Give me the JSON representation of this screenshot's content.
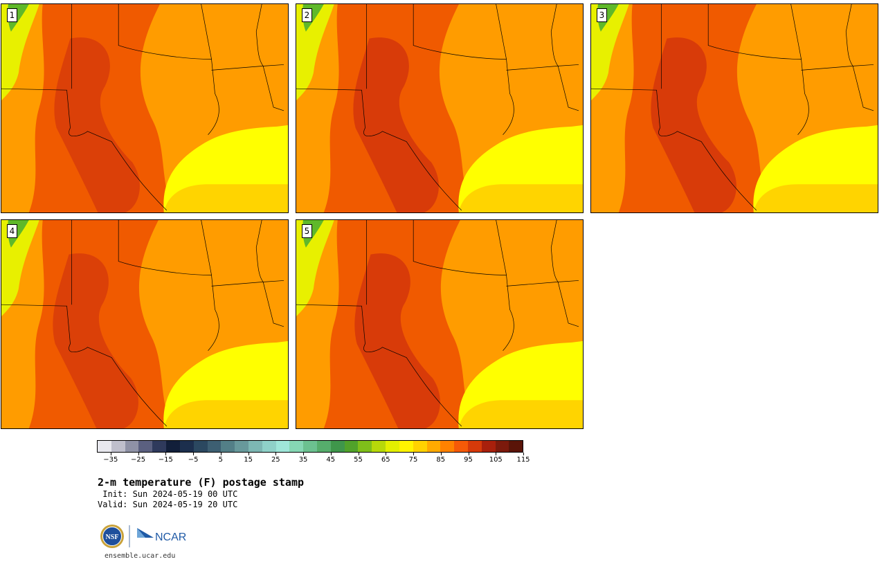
{
  "panels": [
    {
      "label": "1"
    },
    {
      "label": "2"
    },
    {
      "label": "3"
    },
    {
      "label": "4"
    },
    {
      "label": "5"
    }
  ],
  "colorbar": {
    "colors": [
      "#e8e8ee",
      "#bfbfcc",
      "#8f92a6",
      "#5b6080",
      "#2f3a5c",
      "#121f3a",
      "#1c2f4d",
      "#2b4860",
      "#3d5f72",
      "#537f87",
      "#68999b",
      "#7db7b3",
      "#8fd1c8",
      "#9fe6d9",
      "#86d7b4",
      "#6cc190",
      "#56ad6c",
      "#3f964b",
      "#51a22a",
      "#7fbf1a",
      "#b7d90a",
      "#e3f000",
      "#fff400",
      "#ffd200",
      "#ffaa00",
      "#ff8200",
      "#f55a08",
      "#d63a0a",
      "#a8200c",
      "#7c1a0c",
      "#5a1408"
    ],
    "tick_labels": [
      "−35",
      "−25",
      "−15",
      "−5",
      "5",
      "15",
      "25",
      "35",
      "45",
      "55",
      "65",
      "75",
      "85",
      "95",
      "105",
      "115"
    ]
  },
  "title": "2-m temperature (F) postage stamp",
  "init_line": " Init: Sun 2024-05-19 00 UTC",
  "valid_line": "Valid: Sun 2024-05-19 20 UTC",
  "logos": {
    "nsf": "NSF",
    "ncar": "NCAR"
  },
  "website": "ensemble.ucar.edu",
  "map_colors": {
    "gulf": "#ffd400",
    "coast_water": "#ffff00",
    "base": "#ff9c00",
    "hot": "#f05a00",
    "hotter": "#d63a0a",
    "mountain_green": "#5fb82a",
    "mountain_yellow": "#e8f000",
    "border": "#000000"
  }
}
